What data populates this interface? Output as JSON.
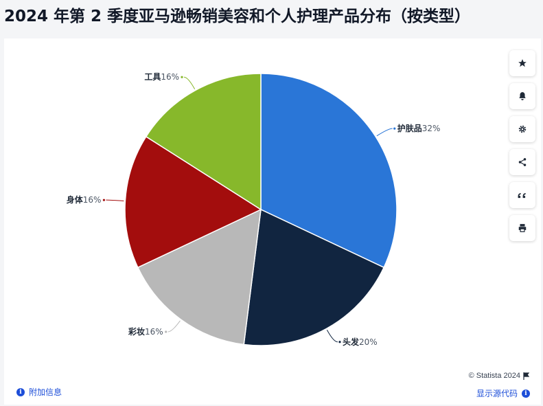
{
  "title": "2024 年第 2 季度亚马逊畅销美容和个人护理产品分布（按类型）",
  "chart_data": {
    "type": "pie",
    "slices": [
      {
        "label": "护肤品",
        "value": 32,
        "color": "#2a76d7"
      },
      {
        "label": "头发",
        "value": 20,
        "color": "#112540"
      },
      {
        "label": "彩妆",
        "value": 16,
        "color": "#b8b8b8"
      },
      {
        "label": "身体",
        "value": 16,
        "color": "#a30d0d"
      },
      {
        "label": "工具",
        "value": 16,
        "color": "#87b82b"
      }
    ],
    "unit": "%"
  },
  "toolbar": {
    "buttons": [
      "star-icon",
      "bell-icon",
      "gear-icon",
      "share-icon",
      "quote-icon",
      "print-icon"
    ]
  },
  "footer": {
    "credit": "© Statista 2024",
    "more_info": "附加信息",
    "show_source": "显示源代码"
  }
}
